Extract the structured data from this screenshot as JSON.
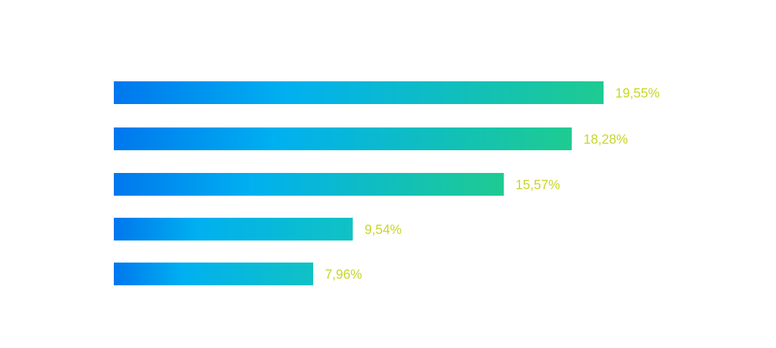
{
  "colors": {
    "bar_gradient_start": "#0077ee",
    "bar_gradient_mid": "#00b0f0",
    "bar_gradient_end": "#1ecb91",
    "label_color": "#c8d62a",
    "background": "#ffffff"
  },
  "chart_data": {
    "type": "bar",
    "orientation": "horizontal",
    "title": "",
    "xlabel": "",
    "ylabel": "",
    "xlim": [
      0,
      25
    ],
    "grid": false,
    "axes_visible": false,
    "categories": [],
    "values": [
      19.55,
      18.28,
      15.57,
      9.54,
      7.96
    ],
    "labels": [
      "19,55%",
      "18,28%",
      "15,57%",
      "9,54%",
      "7,96%"
    ]
  }
}
